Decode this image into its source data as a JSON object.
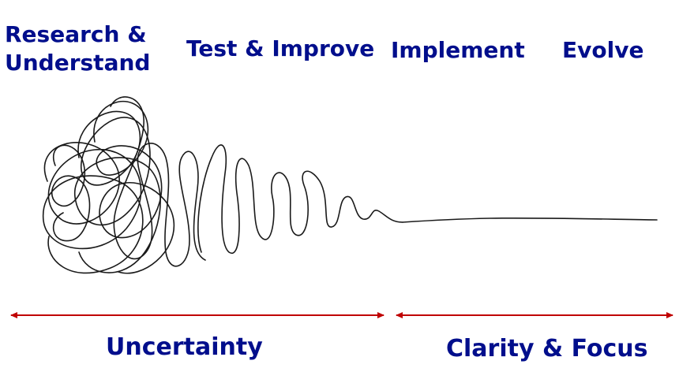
{
  "stages": [
    {
      "label_lines": [
        "Research &",
        "Understand"
      ]
    },
    {
      "label": "Test & Improve"
    },
    {
      "label": "Implement"
    },
    {
      "label": "Evolve"
    }
  ],
  "zones": {
    "uncertainty": {
      "label": "Uncertainty"
    },
    "clarity": {
      "label": "Clarity & Focus"
    }
  },
  "colors": {
    "text": "#000e8c",
    "arrow": "#c00000",
    "scribble": "#1a1a1a"
  }
}
